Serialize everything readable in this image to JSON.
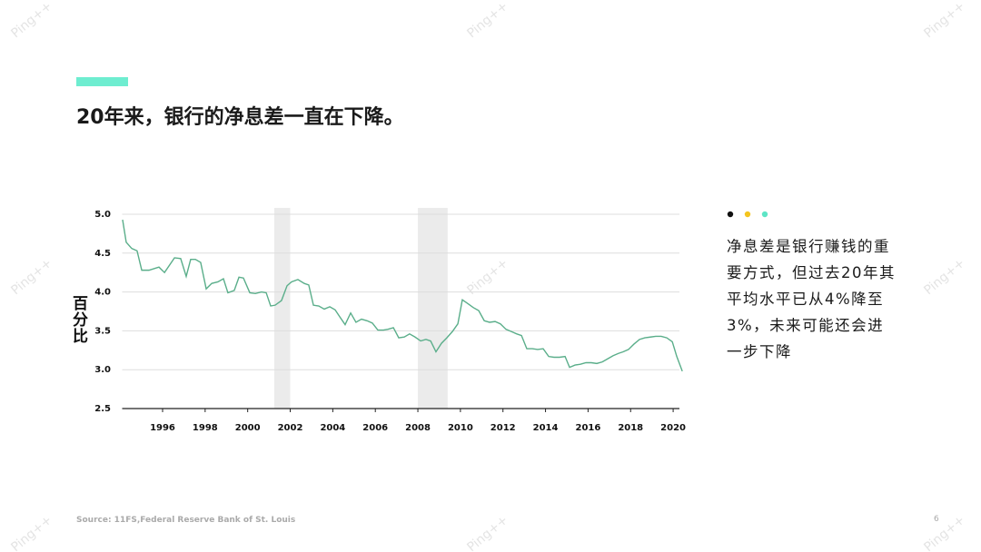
{
  "slide_title": "20年来，银行的净息差一直在下降。",
  "note": "净息差是银行赚钱的重要方式，但过去20年其平均水平已从4%降至3%，未来可能还会进一步下降",
  "source": "Source: 11FS,Federal Reserve Bank of St. Louis",
  "page_number": "6",
  "watermark": "Ping++",
  "chart_data": {
    "type": "line",
    "y_label": "百分比",
    "x": [
      1994.12,
      1994.29,
      1994.55,
      1994.8,
      1995.02,
      1995.36,
      1995.83,
      1996.09,
      1996.56,
      1996.85,
      1997.11,
      1997.32,
      1997.54,
      1997.79,
      1998.05,
      1998.31,
      1998.6,
      1998.86,
      1999.07,
      1999.37,
      1999.59,
      1999.8,
      2000.1,
      2000.36,
      2000.65,
      2000.87,
      2001.08,
      2001.29,
      2001.59,
      2001.85,
      2002.06,
      2002.36,
      2002.66,
      2002.87,
      2003.09,
      2003.34,
      2003.6,
      2003.86,
      2004.11,
      2004.33,
      2004.58,
      2004.84,
      2005.09,
      2005.35,
      2005.61,
      2005.86,
      2006.12,
      2006.38,
      2006.59,
      2006.85,
      2007.1,
      2007.36,
      2007.61,
      2007.87,
      2008.13,
      2008.38,
      2008.6,
      2008.85,
      2009.11,
      2009.36,
      2009.62,
      2009.88,
      2010.09,
      2010.35,
      2010.6,
      2010.86,
      2011.12,
      2011.37,
      2011.63,
      2011.88,
      2012.14,
      2012.4,
      2012.65,
      2012.87,
      2013.12,
      2013.38,
      2013.63,
      2013.89,
      2014.15,
      2014.4,
      2014.66,
      2014.92,
      2015.13,
      2015.39,
      2015.64,
      2015.9,
      2016.15,
      2016.41,
      2016.67,
      2016.92,
      2017.18,
      2017.43,
      2017.65,
      2017.9,
      2018.16,
      2018.42,
      2018.67,
      2018.93,
      2019.18,
      2019.44,
      2019.7,
      2019.96,
      2020.17,
      2020.43
    ],
    "series": [
      {
        "color": "#5aae8a",
        "values": [
          4.93,
          4.64,
          4.56,
          4.53,
          4.28,
          4.28,
          4.32,
          4.25,
          4.44,
          4.43,
          4.2,
          4.42,
          4.42,
          4.38,
          4.04,
          4.11,
          4.13,
          4.17,
          3.99,
          4.02,
          4.19,
          4.18,
          3.99,
          3.98,
          4.0,
          3.99,
          3.82,
          3.83,
          3.89,
          4.08,
          4.13,
          4.16,
          4.11,
          4.09,
          3.83,
          3.82,
          3.78,
          3.81,
          3.77,
          3.68,
          3.58,
          3.73,
          3.61,
          3.65,
          3.63,
          3.6,
          3.51,
          3.51,
          3.52,
          3.54,
          3.41,
          3.42,
          3.46,
          3.42,
          3.37,
          3.39,
          3.37,
          3.23,
          3.34,
          3.41,
          3.49,
          3.59,
          3.9,
          3.85,
          3.8,
          3.76,
          3.63,
          3.61,
          3.62,
          3.59,
          3.52,
          3.49,
          3.46,
          3.44,
          3.27,
          3.27,
          3.26,
          3.27,
          3.17,
          3.16,
          3.16,
          3.17,
          3.03,
          3.06,
          3.07,
          3.09,
          3.09,
          3.08,
          3.1,
          3.14,
          3.18,
          3.21,
          3.23,
          3.26,
          3.33,
          3.39,
          3.41,
          3.42,
          3.43,
          3.43,
          3.41,
          3.36,
          3.17,
          2.98
        ]
      }
    ],
    "shaded_ranges": [
      [
        2001.25,
        2002.0
      ],
      [
        2008.0,
        2009.4
      ]
    ],
    "shade_color": "#ebebeb",
    "xlim": [
      1994.1,
      2020.5
    ],
    "xticks": [
      1996,
      1998,
      2000,
      2002,
      2004,
      2006,
      2008,
      2010,
      2012,
      2014,
      2016,
      2018,
      2020
    ],
    "ylim": [
      2.5,
      5.0
    ],
    "yticks": [
      2.5,
      {
        "value": 3,
        "label": "3.0"
      },
      3.5,
      {
        "value": 4,
        "label": "4.0"
      },
      4.5,
      {
        "value": 5,
        "label": "5.0"
      }
    ],
    "grid": true
  }
}
